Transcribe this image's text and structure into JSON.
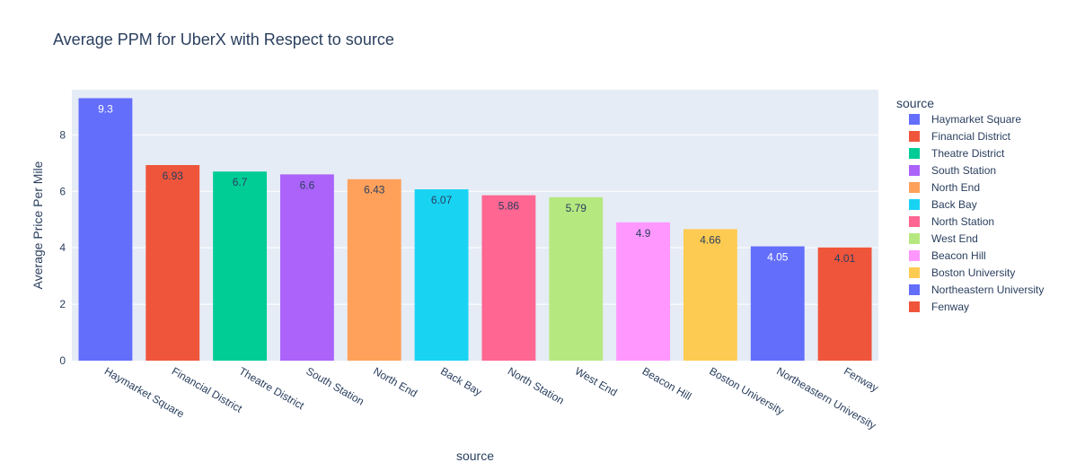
{
  "chart_data": {
    "type": "bar",
    "title": "Average PPM for UberX with Respect to source",
    "xlabel": "source",
    "ylabel": "Average Price Per Mile",
    "ylim": [
      0,
      9.6
    ],
    "yticks": [
      0,
      2,
      4,
      6,
      8
    ],
    "grid": true,
    "legend_title": "source",
    "legend_position": "right",
    "categories": [
      "Haymarket Square",
      "Financial District",
      "Theatre District",
      "South Station",
      "North End",
      "Back Bay",
      "North Station",
      "West End",
      "Beacon Hill",
      "Boston University",
      "Northeastern University",
      "Fenway"
    ],
    "values": [
      9.3,
      6.93,
      6.7,
      6.6,
      6.43,
      6.07,
      5.86,
      5.79,
      4.9,
      4.66,
      4.05,
      4.01
    ],
    "data_labels": [
      "9.3",
      "6.93",
      "6.7",
      "6.6",
      "6.43",
      "6.07",
      "5.86",
      "5.79",
      "4.9",
      "4.66",
      "4.05",
      "4.01"
    ],
    "colors": [
      "#636efa",
      "#ef553b",
      "#00cc96",
      "#ab63fa",
      "#ffa15a",
      "#19d3f3",
      "#ff6692",
      "#b6e880",
      "#ff97ff",
      "#fecb52",
      "#636efa",
      "#ef553b"
    ],
    "label_colors": [
      "#ffffff",
      "#2a3f5f",
      "#2a3f5f",
      "#2a3f5f",
      "#2a3f5f",
      "#2a3f5f",
      "#2a3f5f",
      "#2a3f5f",
      "#2a3f5f",
      "#2a3f5f",
      "#ffffff",
      "#2a3f5f"
    ]
  },
  "style": {
    "plot_background": "#e5ecf6",
    "grid_color": "#ffffff",
    "text_color": "#2a3f5f"
  }
}
